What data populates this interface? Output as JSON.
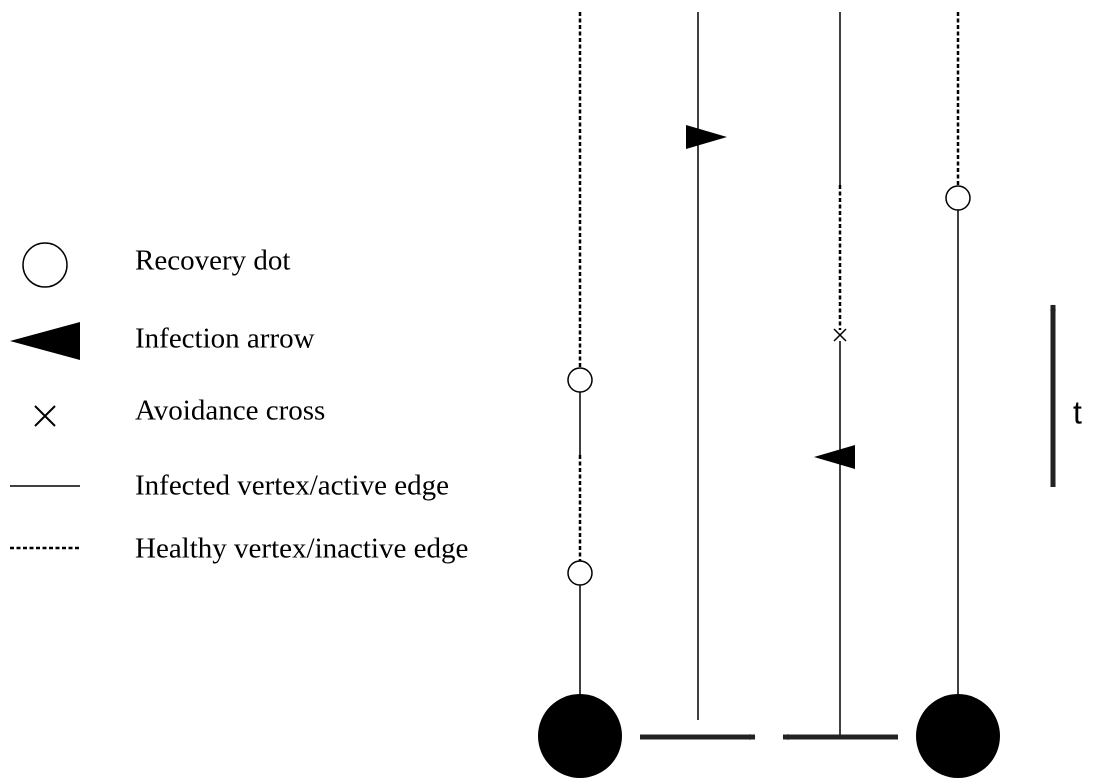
{
  "legend": {
    "items": [
      {
        "label": "Recovery dot"
      },
      {
        "label": "Infection arrow"
      },
      {
        "label": "Avoidance cross"
      },
      {
        "label": "Infected vertex/active edge"
      },
      {
        "label": "Healthy vertex/inactive edge"
      }
    ]
  },
  "time_axis": {
    "label": "t"
  }
}
